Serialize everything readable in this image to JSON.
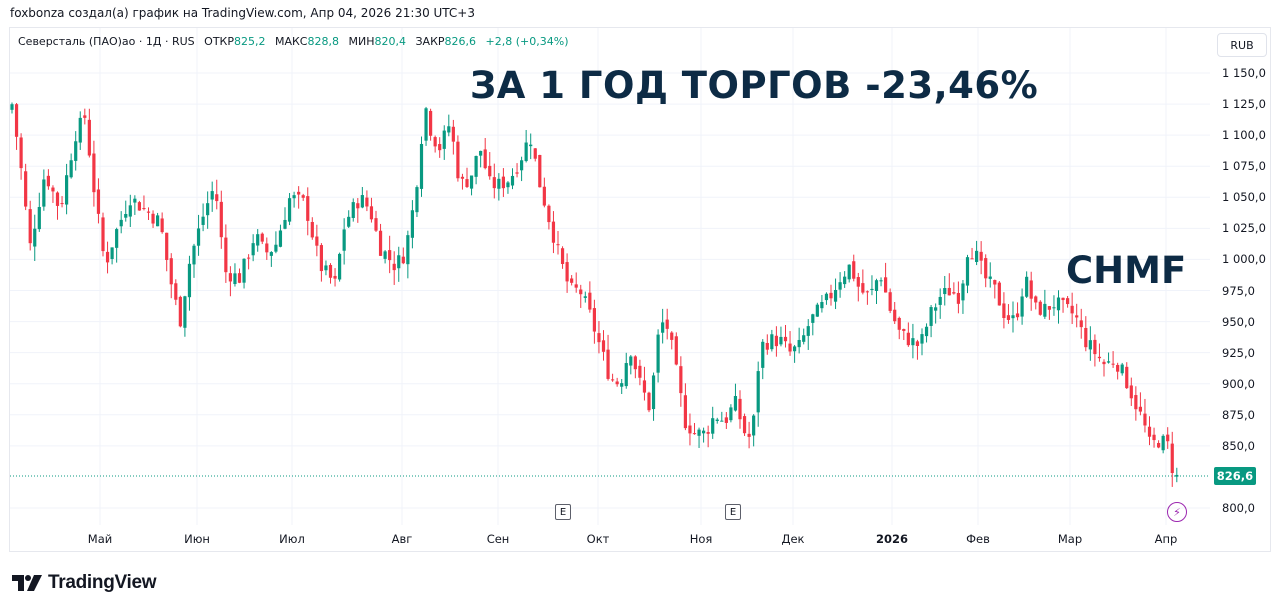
{
  "credit": "foxbonza создал(а) график на TradingView.com, Апр 04, 2026 21:30 UTC+3",
  "legend": {
    "symbol": "Северсталь (ПАО)ао · 1Д · RUS",
    "open_label": "ОТКР",
    "open": "825,2",
    "high_label": "МАКС",
    "high": "828,8",
    "low_label": "МИН",
    "low": "820,4",
    "close_label": "ЗАКР",
    "close": "826,6",
    "change": "+2,8 (+0,34%)"
  },
  "currency_button": "RUB",
  "headline": "ЗА 1 ГОД ТОРГОВ -23,46%",
  "ticker_label": "CHMF",
  "last_price_tag": "826,6",
  "earnings_badge": "E",
  "logo_text": "TradingView",
  "colors": {
    "up": "#089981",
    "down": "#f23645",
    "headline": "#0d2b45",
    "grid": "#f0f3fa",
    "event": "#9c27b0"
  },
  "chart_data": {
    "type": "candlestick",
    "title": "Северсталь (ПАО)ао · 1Д · RUS",
    "annotations": [
      "ЗА 1 ГОД ТОРГОВ -23,46%",
      "CHMF"
    ],
    "y_axis": {
      "label": "RUB",
      "range": [
        790,
        1160
      ],
      "ticks": [
        "1 150,0",
        "1 125,0",
        "1 100,0",
        "1 075,0",
        "1 050,0",
        "1 025,0",
        "1 000,0",
        "975,0",
        "950,0",
        "925,0",
        "900,0",
        "875,0",
        "850,0",
        "826,6",
        "800,0"
      ]
    },
    "x_axis": {
      "ticks": [
        "Май",
        "Июн",
        "Июл",
        "Авг",
        "Сен",
        "Окт",
        "Ноя",
        "Дек",
        "2026",
        "Фев",
        "Мар",
        "Апр"
      ]
    },
    "grid": true,
    "last": {
      "open": 825.2,
      "high": 828.8,
      "low": 820.4,
      "close": 826.6,
      "change": 2.8,
      "change_pct": 0.34
    },
    "period_change_pct": -23.46,
    "monthly_close_path": [
      {
        "x": "Апр 2025",
        "close": 1110
      },
      {
        "x": "Май",
        "close": 1010
      },
      {
        "x": "Июн",
        "close": 990
      },
      {
        "x": "Июл",
        "close": 1040
      },
      {
        "x": "Авг",
        "close": 1075
      },
      {
        "x": "Сен",
        "close": 1060
      },
      {
        "x": "Окт",
        "close": 905
      },
      {
        "x": "Ноя",
        "close": 860
      },
      {
        "x": "Дек",
        "close": 960
      },
      {
        "x": "2026",
        "close": 980
      },
      {
        "x": "Фев",
        "close": 1000
      },
      {
        "x": "Мар",
        "close": 950
      },
      {
        "x": "Апр",
        "close": 826.6
      }
    ],
    "keypoints": [
      [
        12,
        1125
      ],
      [
        20,
        1080
      ],
      [
        30,
        1010
      ],
      [
        45,
        1070
      ],
      [
        60,
        1040
      ],
      [
        75,
        1100
      ],
      [
        85,
        1115
      ],
      [
        95,
        1050
      ],
      [
        105,
        995
      ],
      [
        115,
        1020
      ],
      [
        130,
        1050
      ],
      [
        145,
        1040
      ],
      [
        160,
        1030
      ],
      [
        170,
        985
      ],
      [
        180,
        950
      ],
      [
        190,
        1000
      ],
      [
        205,
        1040
      ],
      [
        215,
        1060
      ],
      [
        225,
        990
      ],
      [
        240,
        985
      ],
      [
        255,
        1020
      ],
      [
        265,
        1005
      ],
      [
        275,
        1010
      ],
      [
        290,
        1050
      ],
      [
        305,
        1045
      ],
      [
        320,
        995
      ],
      [
        335,
        980
      ],
      [
        345,
        1030
      ],
      [
        360,
        1050
      ],
      [
        370,
        1040
      ],
      [
        380,
        1010
      ],
      [
        395,
        995
      ],
      [
        405,
        1005
      ],
      [
        415,
        1050
      ],
      [
        425,
        1125
      ],
      [
        432,
        1100
      ],
      [
        440,
        1090
      ],
      [
        450,
        1110
      ],
      [
        460,
        1060
      ],
      [
        470,
        1065
      ],
      [
        480,
        1090
      ],
      [
        490,
        1060
      ],
      [
        500,
        1060
      ],
      [
        510,
        1065
      ],
      [
        520,
        1080
      ],
      [
        530,
        1100
      ],
      [
        540,
        1060
      ],
      [
        550,
        1030
      ],
      [
        560,
        1000
      ],
      [
        570,
        975
      ],
      [
        580,
        975
      ],
      [
        590,
        955
      ],
      [
        600,
        930
      ],
      [
        610,
        905
      ],
      [
        620,
        900
      ],
      [
        630,
        930
      ],
      [
        640,
        900
      ],
      [
        650,
        880
      ],
      [
        660,
        950
      ],
      [
        668,
        945
      ],
      [
        675,
        915
      ],
      [
        685,
        870
      ],
      [
        695,
        860
      ],
      [
        705,
        860
      ],
      [
        715,
        875
      ],
      [
        725,
        870
      ],
      [
        735,
        885
      ],
      [
        745,
        860
      ],
      [
        752,
        855
      ],
      [
        760,
        930
      ],
      [
        770,
        935
      ],
      [
        780,
        935
      ],
      [
        790,
        925
      ],
      [
        800,
        930
      ],
      [
        810,
        950
      ],
      [
        820,
        960
      ],
      [
        830,
        970
      ],
      [
        840,
        985
      ],
      [
        850,
        995
      ],
      [
        860,
        975
      ],
      [
        870,
        970
      ],
      [
        880,
        990
      ],
      [
        890,
        960
      ],
      [
        900,
        940
      ],
      [
        910,
        935
      ],
      [
        920,
        930
      ],
      [
        930,
        955
      ],
      [
        940,
        970
      ],
      [
        950,
        975
      ],
      [
        960,
        970
      ],
      [
        968,
        1010
      ],
      [
        975,
        1005
      ],
      [
        985,
        985
      ],
      [
        995,
        975
      ],
      [
        1005,
        955
      ],
      [
        1015,
        950
      ],
      [
        1025,
        985
      ],
      [
        1035,
        960
      ],
      [
        1045,
        960
      ],
      [
        1055,
        965
      ],
      [
        1065,
        960
      ],
      [
        1075,
        955
      ],
      [
        1085,
        935
      ],
      [
        1095,
        925
      ],
      [
        1105,
        915
      ],
      [
        1115,
        920
      ],
      [
        1125,
        905
      ],
      [
        1135,
        885
      ],
      [
        1143,
        870
      ],
      [
        1150,
        850
      ],
      [
        1160,
        855
      ],
      [
        1168,
        850
      ],
      [
        1175,
        822
      ],
      [
        1180,
        826.6
      ]
    ]
  }
}
